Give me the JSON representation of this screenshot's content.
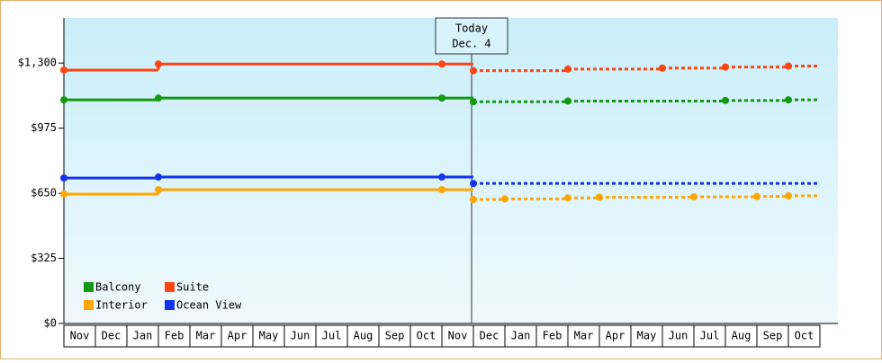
{
  "chart_data": {
    "type": "step-line",
    "categories": [
      "Nov",
      "Dec",
      "Jan",
      "Feb",
      "Mar",
      "Apr",
      "May",
      "Jun",
      "Jul",
      "Aug",
      "Sep",
      "Oct",
      "Nov",
      "Dec",
      "Jan",
      "Feb",
      "Mar",
      "Apr",
      "May",
      "Jun",
      "Jul",
      "Aug",
      "Sep",
      "Oct"
    ],
    "series": [
      {
        "name": "Balcony",
        "color": "#119911",
        "values": [
          1116,
          1116,
          1116,
          1125,
          1125,
          1125,
          1125,
          1125,
          1125,
          1125,
          1125,
          1125,
          1125,
          null,
          null,
          null,
          null,
          null,
          null,
          null,
          null,
          null,
          null,
          null
        ],
        "forecast": [
          null,
          null,
          null,
          null,
          null,
          null,
          null,
          null,
          null,
          null,
          null,
          null,
          null,
          1107,
          1107,
          1107,
          1110,
          1110,
          1110,
          1110,
          1110,
          1113,
          1113,
          1116
        ]
      },
      {
        "name": "Suite",
        "color": "#ff4411",
        "values": [
          1265,
          1265,
          1265,
          1295,
          1295,
          1295,
          1295,
          1295,
          1295,
          1295,
          1295,
          1295,
          1295,
          null,
          null,
          null,
          null,
          null,
          null,
          null,
          null,
          null,
          null,
          null
        ],
        "forecast": [
          null,
          null,
          null,
          null,
          null,
          null,
          null,
          null,
          null,
          null,
          null,
          null,
          null,
          1262,
          1262,
          1262,
          1270,
          1270,
          1270,
          1275,
          1275,
          1280,
          1280,
          1285
        ]
      },
      {
        "name": "Interior",
        "color": "#ffa500",
        "values": [
          646,
          646,
          646,
          668,
          668,
          668,
          668,
          668,
          668,
          668,
          668,
          668,
          668,
          null,
          null,
          null,
          null,
          null,
          null,
          null,
          null,
          null,
          null,
          null
        ],
        "forecast": [
          null,
          null,
          null,
          null,
          null,
          null,
          null,
          null,
          null,
          null,
          null,
          null,
          null,
          619,
          622,
          622,
          627,
          630,
          630,
          630,
          632,
          632,
          634,
          637
        ]
      },
      {
        "name": "Ocean View",
        "color": "#1133ee",
        "values": [
          726,
          726,
          726,
          731,
          731,
          731,
          731,
          731,
          731,
          731,
          731,
          731,
          731,
          null,
          null,
          null,
          null,
          null,
          null,
          null,
          null,
          null,
          null,
          null
        ],
        "forecast": [
          null,
          null,
          null,
          null,
          null,
          null,
          null,
          null,
          null,
          null,
          null,
          null,
          null,
          699,
          699,
          699,
          699,
          699,
          699,
          699,
          699,
          699,
          699,
          699
        ]
      }
    ],
    "today": {
      "label": "Today",
      "date": "Dec. 4"
    },
    "ylim": [
      0,
      1525
    ],
    "yticks": [
      {
        "value": 0,
        "label": "$0"
      },
      {
        "value": 325,
        "label": "$325"
      },
      {
        "value": 650,
        "label": "$650"
      },
      {
        "value": 975,
        "label": "$975"
      },
      {
        "value": 1300,
        "label": "$1,300"
      }
    ]
  }
}
